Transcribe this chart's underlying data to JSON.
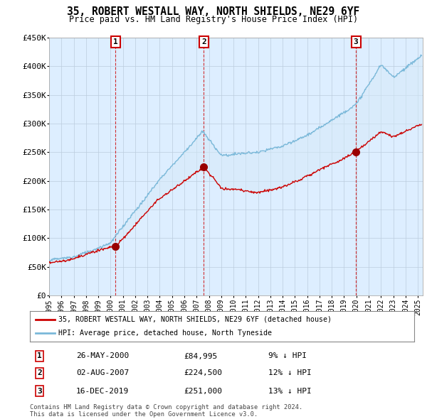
{
  "title": "35, ROBERT WESTALL WAY, NORTH SHIELDS, NE29 6YF",
  "subtitle": "Price paid vs. HM Land Registry's House Price Index (HPI)",
  "ylim": [
    0,
    450000
  ],
  "yticks": [
    0,
    50000,
    100000,
    150000,
    200000,
    250000,
    300000,
    350000,
    400000,
    450000
  ],
  "ytick_labels": [
    "£0",
    "£50K",
    "£100K",
    "£150K",
    "£200K",
    "£250K",
    "£300K",
    "£350K",
    "£400K",
    "£450K"
  ],
  "sale_year_floats": [
    2000.4,
    2007.58,
    2019.96
  ],
  "sale_prices": [
    84995,
    224500,
    251000
  ],
  "sale_labels": [
    "1",
    "2",
    "3"
  ],
  "hpi_line_color": "#7ab8d9",
  "hpi_fill_color": "#d6eaf8",
  "price_line_color": "#cc0000",
  "marker_color": "#990000",
  "sale_box_color": "#cc0000",
  "legend_label_red": "35, ROBERT WESTALL WAY, NORTH SHIELDS, NE29 6YF (detached house)",
  "legend_label_blue": "HPI: Average price, detached house, North Tyneside",
  "table_data": [
    [
      "1",
      "26-MAY-2000",
      "£84,995",
      "9% ↓ HPI"
    ],
    [
      "2",
      "02-AUG-2007",
      "£224,500",
      "12% ↓ HPI"
    ],
    [
      "3",
      "16-DEC-2019",
      "£251,000",
      "13% ↓ HPI"
    ]
  ],
  "footer": "Contains HM Land Registry data © Crown copyright and database right 2024.\nThis data is licensed under the Open Government Licence v3.0.",
  "background_color": "#ffffff",
  "plot_bg_color": "#ddeeff",
  "grid_color": "#bbccdd"
}
